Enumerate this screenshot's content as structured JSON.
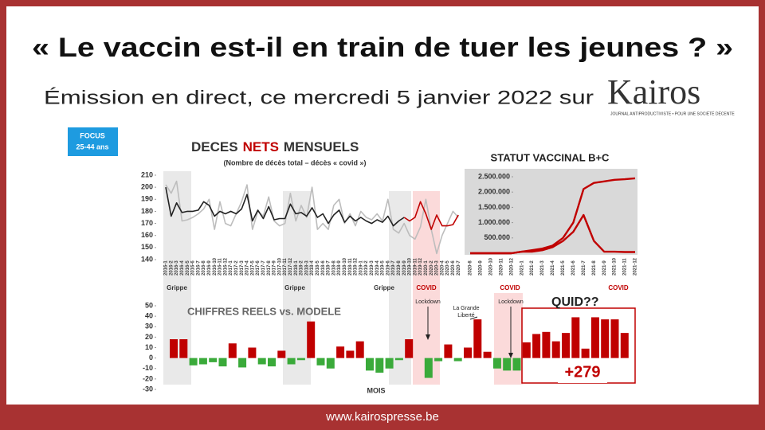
{
  "header": {
    "title": "« Le vaccin est-il en train de tuer les jeunes ? »",
    "subtitle": "Émission en direct, ce mercredi 5 janvier 2022 sur",
    "logo": "Kairos",
    "logo_tagline": "JOURNAL ANTIPRODUCTIVISTE • POUR UNE SOCIÉTÉ DÉCENTE"
  },
  "focus": [
    "FOCUS",
    "25-44 ans"
  ],
  "footer": "www.kairospresse.be",
  "annotations": {
    "grippe": [
      "Grippe",
      "Grippe",
      "Grippe"
    ],
    "covid": [
      "COVID",
      "COVID",
      "COVID"
    ],
    "lockdown": [
      "Lockdown",
      "Lockdown"
    ],
    "grande_liberte": [
      "La Grande",
      "Liberté"
    ],
    "quid": "QUID??",
    "total": "+279"
  },
  "chart_data": [
    {
      "type": "line",
      "title": [
        "DECES",
        "NETS",
        "MENSUELS"
      ],
      "subtitle": "(Nombre de décès total – décès « covid »)",
      "categories": [
        "2016-1",
        "2016-2",
        "2016-3",
        "2016-4",
        "2016-5",
        "2016-6",
        "2016-7",
        "2016-8",
        "2016-9",
        "2016-10",
        "2016-11",
        "2016-12",
        "2017-1",
        "2017-2",
        "2017-3",
        "2017-4",
        "2017-5",
        "2017-6",
        "2017-7",
        "2017-8",
        "2017-9",
        "2017-10",
        "2017-11",
        "2017-12",
        "2018-1",
        "2018-2",
        "2018-3",
        "2018-4",
        "2018-5",
        "2018-6",
        "2018-7",
        "2018-8",
        "2018-9",
        "2018-10",
        "2018-11",
        "2018-12",
        "2019-1",
        "2019-2",
        "2019-3",
        "2019-4",
        "2019-5",
        "2019-6",
        "2019-7",
        "2019-8",
        "2019-9",
        "2019-10",
        "2019-11",
        "2019-12",
        "2020-1",
        "2020-2",
        "2020-3",
        "2020-4",
        "2020-5",
        "2020-6",
        "2020-7"
      ],
      "ylim": [
        140,
        210
      ],
      "yticks": [
        140,
        150,
        160,
        170,
        180,
        190,
        200,
        210
      ],
      "series": [
        {
          "color": "#bdbdbd",
          "values": [
            202,
            195,
            205,
            172,
            173,
            175,
            178,
            182,
            190,
            165,
            188,
            170,
            168,
            178,
            188,
            202,
            165,
            180,
            176,
            192,
            172,
            168,
            170,
            195,
            172,
            185,
            175,
            200,
            165,
            170,
            165,
            185,
            190,
            170,
            178,
            168,
            180,
            175,
            173,
            178,
            172,
            190,
            165,
            162,
            170,
            160,
            157,
            167,
            190,
            165,
            145,
            160,
            170,
            180,
            175
          ]
        },
        {
          "color": "#222222",
          "values": [
            200,
            176,
            187,
            179,
            180,
            180,
            181,
            188,
            185,
            176,
            180,
            178,
            180,
            178,
            182,
            194,
            172,
            181,
            174,
            184,
            173,
            174,
            174,
            186,
            178,
            179,
            176,
            183,
            175,
            178,
            170,
            177,
            181,
            171,
            176,
            172,
            175,
            172,
            170,
            173,
            171,
            176,
            168,
            172,
            175,
            null,
            null,
            null,
            null,
            null,
            null,
            null,
            null,
            null,
            null
          ]
        },
        {
          "color": "#c00000",
          "values": [
            null,
            null,
            null,
            null,
            null,
            null,
            null,
            null,
            null,
            null,
            null,
            null,
            null,
            null,
            null,
            null,
            null,
            null,
            null,
            null,
            null,
            null,
            null,
            null,
            null,
            null,
            null,
            null,
            null,
            null,
            null,
            null,
            null,
            null,
            null,
            null,
            null,
            null,
            null,
            null,
            null,
            null,
            null,
            null,
            175,
            172,
            175,
            188,
            178,
            165,
            177,
            168,
            168,
            169,
            177
          ]
        }
      ]
    },
    {
      "type": "line",
      "title": "STATUT VACCINAL B+C",
      "background": "#d9d9d9",
      "categories": [
        "2020-8",
        "2020-9",
        "2020-10",
        "2020-11",
        "2020-12",
        "2021-1",
        "2021-2",
        "2021-3",
        "2021-4",
        "2021-5",
        "2021-6",
        "2021-7",
        "2021-8",
        "2021-9",
        "2021-10",
        "2021-11",
        "2021-12"
      ],
      "ylim": [
        0,
        2500000
      ],
      "yticks": [
        {
          "value": 500000,
          "label": "500.000"
        },
        {
          "value": 1000000,
          "label": "1.000.000"
        },
        {
          "value": 1500000,
          "label": "1.500.000"
        },
        {
          "value": 2000000,
          "label": "2.000.000"
        },
        {
          "value": 2500000,
          "label": "2.500.000"
        }
      ],
      "series": [
        {
          "color": "#c00000",
          "values": [
            0,
            0,
            0,
            0,
            0,
            50000,
            100000,
            150000,
            250000,
            500000,
            1000000,
            2100000,
            2300000,
            2350000,
            2400000,
            2420000,
            2450000
          ]
        },
        {
          "color": "#c00000",
          "values": [
            0,
            0,
            0,
            0,
            0,
            50000,
            50000,
            100000,
            200000,
            400000,
            700000,
            1250000,
            400000,
            50000,
            50000,
            40000,
            40000
          ]
        }
      ]
    },
    {
      "type": "bar",
      "title": "CHIFFRES REELS vs. MODELE",
      "x_label": "MOIS",
      "ylim": [
        -30,
        50
      ],
      "yticks": [
        -30,
        -20,
        -10,
        0,
        10,
        20,
        30,
        40,
        50
      ],
      "colors": {
        "positive": "#c00000",
        "negative": "#3aaa3a"
      },
      "values": [
        18,
        18,
        -7,
        -6,
        -4,
        -8,
        14,
        -9,
        10,
        -6,
        -8,
        7,
        -6,
        -2,
        35,
        -7,
        -10,
        11,
        7,
        16,
        -12,
        -14,
        -10,
        -2,
        18,
        0,
        -19,
        -3,
        13,
        -3,
        10,
        37,
        6,
        -10,
        -12,
        -12,
        15,
        23,
        25,
        16,
        24,
        39,
        9,
        39,
        37,
        37,
        24
      ]
    }
  ]
}
